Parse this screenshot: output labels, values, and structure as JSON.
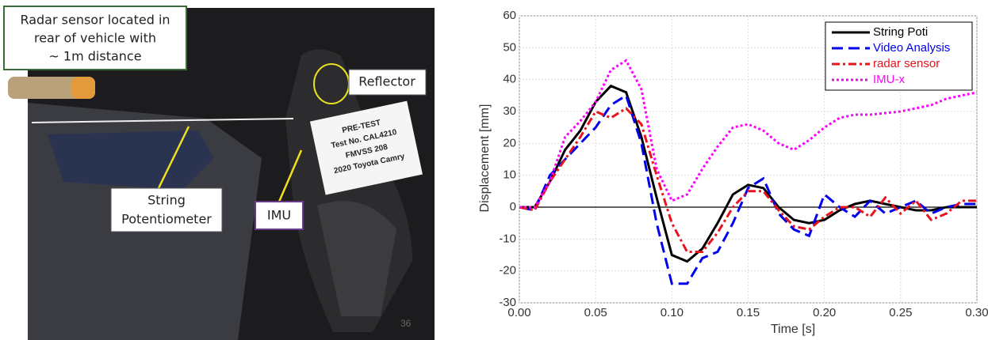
{
  "photo": {
    "radar_note": [
      "Radar sensor located in",
      "rear of vehicle with",
      "~ 1m distance"
    ],
    "reflector": "Reflector",
    "string_pot": [
      "String",
      "Potentiometer"
    ],
    "imu": "IMU",
    "placard": [
      "PRE-TEST",
      "Test No. CAL4210",
      "FMVSS 208",
      "2020 Toyota Camry"
    ],
    "page_number": "36"
  },
  "chart_data": {
    "type": "line",
    "x_label": "Time [s]",
    "y_label": "Displacement [mm]",
    "x": [
      0,
      0.01,
      0.02,
      0.03,
      0.04,
      0.05,
      0.06,
      0.07,
      0.08,
      0.09,
      0.1,
      0.11,
      0.12,
      0.13,
      0.14,
      0.15,
      0.16,
      0.17,
      0.18,
      0.19,
      0.2,
      0.21,
      0.22,
      0.23,
      0.24,
      0.25,
      0.26,
      0.27,
      0.28,
      0.29,
      0.3
    ],
    "series": [
      {
        "name": "String Poti",
        "color": "#000000",
        "dash": "none",
        "values": [
          0,
          0,
          8,
          18,
          24,
          33,
          38,
          36,
          22,
          3,
          -15,
          -17,
          -13,
          -5,
          4,
          7,
          6,
          0,
          -4,
          -5,
          -4,
          -1,
          1,
          2,
          1,
          0,
          -1,
          -1,
          0,
          0,
          0
        ]
      },
      {
        "name": "Video Analysis",
        "color": "#0000ee",
        "dash": "14 7",
        "values": [
          0,
          -1,
          10,
          15,
          20,
          25,
          32,
          35,
          20,
          -5,
          -24,
          -24,
          -16,
          -14,
          -5,
          6,
          9,
          -2,
          -7,
          -9,
          4,
          0,
          -3,
          2,
          -2,
          0,
          2,
          -2,
          0,
          1,
          1
        ]
      },
      {
        "name": "radar sensor",
        "color": "#e8141c",
        "dash": "10 4 3 4",
        "values": [
          0,
          -1,
          8,
          15,
          22,
          30,
          28,
          31,
          26,
          10,
          -5,
          -14,
          -14,
          -8,
          0,
          5,
          5,
          -1,
          -6,
          -7,
          -3,
          0,
          0,
          -3,
          3,
          -2,
          2,
          -4,
          -2,
          2,
          2
        ]
      },
      {
        "name": "IMU-x",
        "color": "#ff00ff",
        "dash": "3 3",
        "values": [
          0,
          0,
          8,
          22,
          27,
          33,
          43,
          46,
          37,
          12,
          2,
          4,
          12,
          19,
          25,
          26,
          24,
          20,
          18,
          21,
          25,
          28,
          29,
          29,
          29.5,
          30,
          31,
          32,
          34,
          35,
          36
        ]
      }
    ],
    "xlim": [
      0,
      0.3
    ],
    "ylim": [
      -30,
      60
    ],
    "xticks": [
      {
        "value": 0,
        "label": "0.00"
      },
      {
        "value": 0.05,
        "label": "0.05"
      },
      {
        "value": 0.1,
        "label": "0.10"
      },
      {
        "value": 0.15,
        "label": "0.15"
      },
      {
        "value": 0.2,
        "label": "0.20"
      },
      {
        "value": 0.25,
        "label": "0.25"
      },
      {
        "value": 0.3,
        "label": "0.30"
      }
    ],
    "yticks": [
      -30,
      -20,
      -10,
      0,
      10,
      20,
      30,
      40,
      50,
      60
    ],
    "grid": true,
    "legend": "top-right"
  }
}
